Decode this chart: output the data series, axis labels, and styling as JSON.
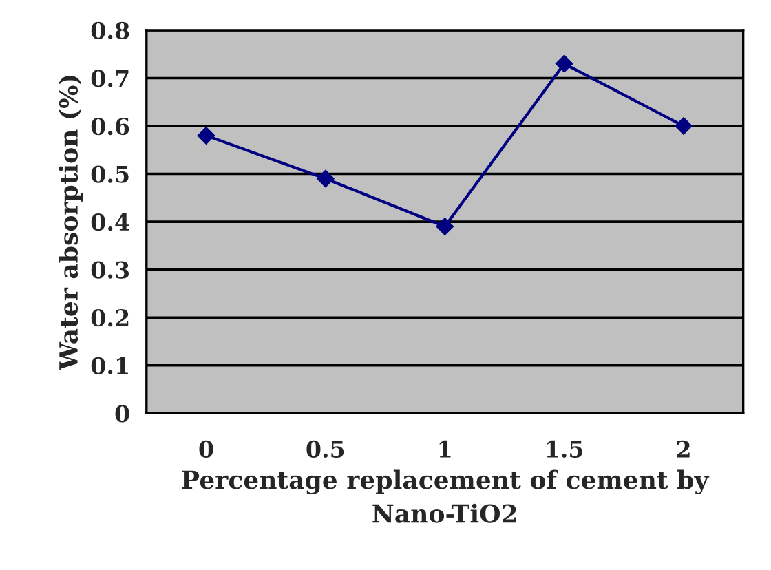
{
  "chart_data": {
    "type": "line",
    "xlabel": "Percentage replacement of cement by Nano-TiO2",
    "ylabel": "Water absorption (%)",
    "categories": [
      "0",
      "0.5",
      "1",
      "1.5",
      "2"
    ],
    "series": [
      {
        "color": "#000080",
        "values": [
          0.58,
          0.49,
          0.39,
          0.73,
          0.6
        ]
      }
    ],
    "ylim": [
      0,
      0.8
    ],
    "yticks": [
      0,
      0.1,
      0.2,
      0.3,
      0.4,
      0.5,
      0.6,
      0.7,
      0.8
    ],
    "grid": "y",
    "marker": "diamond",
    "line_style": "solid",
    "legend": false
  }
}
